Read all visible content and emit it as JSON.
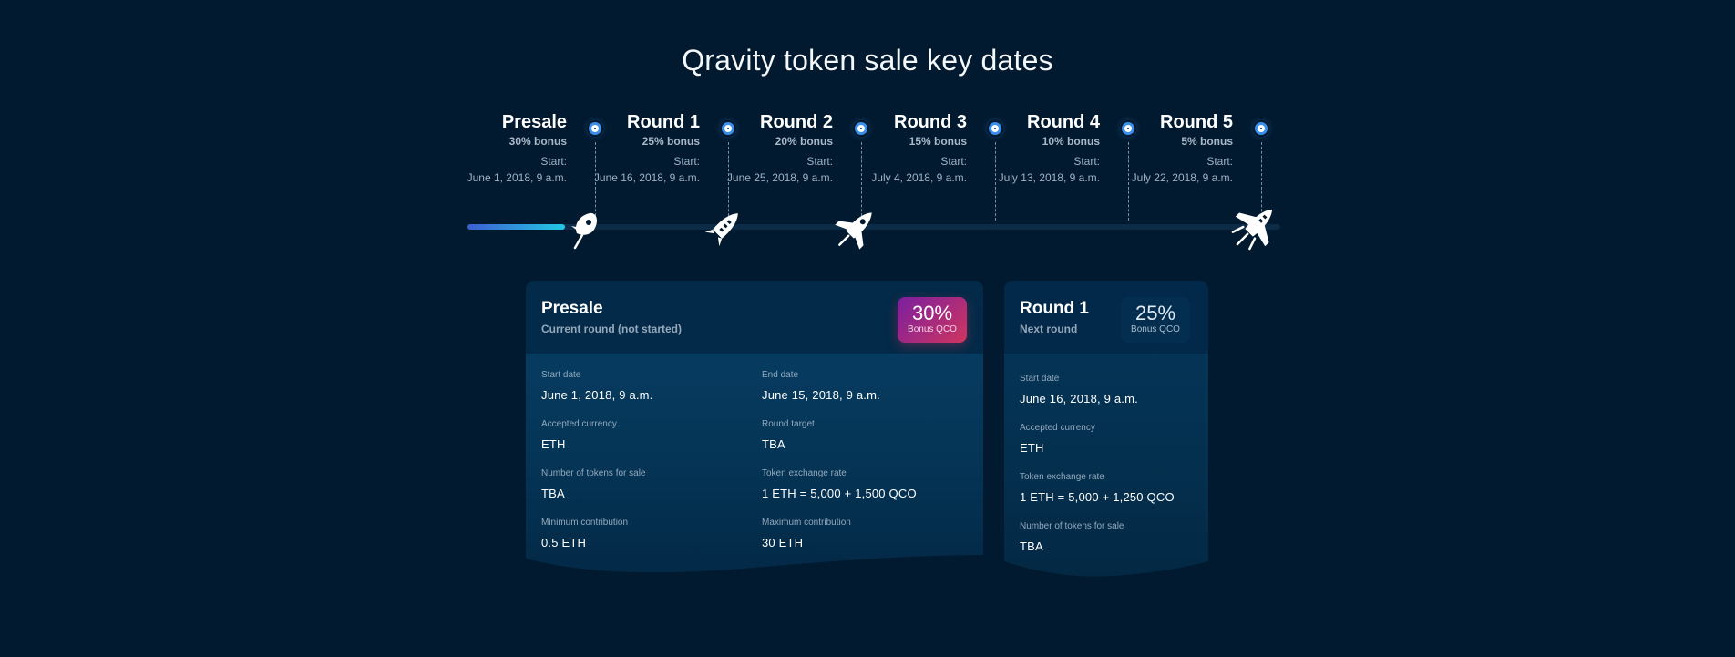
{
  "title": "Qravity token sale key dates",
  "timeline": [
    {
      "name": "Presale",
      "bonus": "30% bonus",
      "start_label": "Start:",
      "start_date": "June 1, 2018, 9 a.m."
    },
    {
      "name": "Round 1",
      "bonus": "25% bonus",
      "start_label": "Start:",
      "start_date": "June 16, 2018, 9 a.m."
    },
    {
      "name": "Round 2",
      "bonus": "20% bonus",
      "start_label": "Start:",
      "start_date": "June 25, 2018, 9 a.m."
    },
    {
      "name": "Round 3",
      "bonus": "15% bonus",
      "start_label": "Start:",
      "start_date": "July 4, 2018, 9 a.m."
    },
    {
      "name": "Round 4",
      "bonus": "10% bonus",
      "start_label": "Start:",
      "start_date": "July 13, 2018, 9 a.m."
    },
    {
      "name": "Round 5",
      "bonus": "5% bonus",
      "start_label": "Start:",
      "start_date": "July 22, 2018, 9 a.m."
    }
  ],
  "timeline_progress": 0.12,
  "icons": {
    "ship_1": "rocket-small-icon",
    "ship_2": "rocket-medium-icon",
    "ship_3": "rocket-large-icon",
    "ship_4": "spaceship-icon"
  },
  "current_round": {
    "title": "Presale",
    "subtitle": "Current round (not started)",
    "bonus_pct": "30%",
    "bonus_label": "Bonus QCO",
    "fields": [
      {
        "label": "Start date",
        "value": "June 1, 2018, 9 a.m."
      },
      {
        "label": "End date",
        "value": "June 15, 2018, 9 a.m."
      },
      {
        "label": "Accepted currency",
        "value": "ETH"
      },
      {
        "label": "Round target",
        "value": "TBA"
      },
      {
        "label": "Number of tokens for sale",
        "value": "TBA"
      },
      {
        "label": "Token exchange rate",
        "value": "1 ETH = 5,000 + 1,500 QCO"
      },
      {
        "label": "Minimum contribution",
        "value": "0.5 ETH"
      },
      {
        "label": "Maximum contribution",
        "value": "30 ETH"
      }
    ]
  },
  "next_round": {
    "title": "Round 1",
    "subtitle": "Next round",
    "bonus_pct": "25%",
    "bonus_label": "Bonus QCO",
    "fields": [
      {
        "label": "Start date",
        "value": "June 16, 2018, 9 a.m."
      },
      {
        "label": "Accepted currency",
        "value": "ETH"
      },
      {
        "label": "Token exchange rate",
        "value": "1 ETH = 5,000 + 1,250 QCO"
      },
      {
        "label": "Number of tokens for sale",
        "value": "TBA"
      }
    ]
  },
  "colors": {
    "background": "#021a2f",
    "accent_blue": "#3b8eea",
    "progress_start": "#3d5fd1",
    "progress_end": "#22c8e6",
    "badge_start": "#7a1fa0",
    "badge_end": "#d0355f"
  }
}
